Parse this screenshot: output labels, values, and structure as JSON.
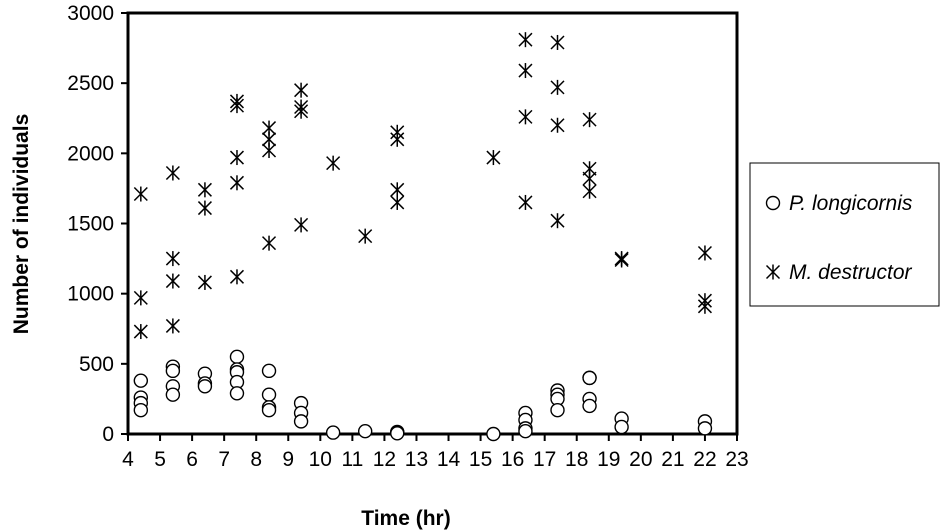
{
  "chart_data": {
    "type": "scatter",
    "title": "",
    "xlabel": "Time (hr)",
    "ylabel": "Number of individuals",
    "xlim": [
      4,
      23
    ],
    "ylim": [
      0,
      3000
    ],
    "xticks": [
      4,
      5,
      6,
      7,
      8,
      9,
      10,
      11,
      12,
      13,
      14,
      15,
      16,
      17,
      18,
      19,
      20,
      21,
      22,
      23
    ],
    "yticks": [
      0,
      500,
      1000,
      1500,
      2000,
      2500,
      3000
    ],
    "grid": false,
    "legend_position": "right",
    "series": [
      {
        "name": "P. longicornis",
        "marker": "open-circle",
        "points": [
          [
            4.4,
            380
          ],
          [
            4.4,
            260
          ],
          [
            4.4,
            220
          ],
          [
            4.4,
            170
          ],
          [
            5.4,
            480
          ],
          [
            5.4,
            450
          ],
          [
            5.4,
            340
          ],
          [
            5.4,
            280
          ],
          [
            6.4,
            430
          ],
          [
            6.4,
            360
          ],
          [
            6.4,
            340
          ],
          [
            7.4,
            550
          ],
          [
            7.4,
            460
          ],
          [
            7.4,
            440
          ],
          [
            7.4,
            370
          ],
          [
            7.4,
            290
          ],
          [
            8.4,
            450
          ],
          [
            8.4,
            280
          ],
          [
            8.4,
            190
          ],
          [
            8.4,
            170
          ],
          [
            9.4,
            220
          ],
          [
            9.4,
            150
          ],
          [
            9.4,
            90
          ],
          [
            10.4,
            10
          ],
          [
            11.4,
            20
          ],
          [
            12.4,
            15
          ],
          [
            12.4,
            10
          ],
          [
            12.4,
            5
          ],
          [
            15.4,
            0
          ],
          [
            16.4,
            150
          ],
          [
            16.4,
            100
          ],
          [
            16.4,
            40
          ],
          [
            16.4,
            20
          ],
          [
            17.4,
            310
          ],
          [
            17.4,
            280
          ],
          [
            17.4,
            250
          ],
          [
            17.4,
            170
          ],
          [
            18.4,
            400
          ],
          [
            18.4,
            400
          ],
          [
            18.4,
            250
          ],
          [
            18.4,
            200
          ],
          [
            19.4,
            110
          ],
          [
            19.4,
            50
          ],
          [
            22,
            90
          ],
          [
            22,
            40
          ]
        ]
      },
      {
        "name": "M. destructor",
        "marker": "asterisk",
        "points": [
          [
            4.4,
            1710
          ],
          [
            4.4,
            970
          ],
          [
            4.4,
            730
          ],
          [
            5.4,
            1860
          ],
          [
            5.4,
            1250
          ],
          [
            5.4,
            1090
          ],
          [
            5.4,
            770
          ],
          [
            6.4,
            1740
          ],
          [
            6.4,
            1610
          ],
          [
            6.4,
            1080
          ],
          [
            7.4,
            2370
          ],
          [
            7.4,
            2340
          ],
          [
            7.4,
            1970
          ],
          [
            7.4,
            1790
          ],
          [
            7.4,
            1120
          ],
          [
            8.4,
            2180
          ],
          [
            8.4,
            2100
          ],
          [
            8.4,
            2020
          ],
          [
            8.4,
            1360
          ],
          [
            9.4,
            2450
          ],
          [
            9.4,
            2330
          ],
          [
            9.4,
            2300
          ],
          [
            9.4,
            1490
          ],
          [
            10.4,
            1930
          ],
          [
            11.4,
            1410
          ],
          [
            12.4,
            2150
          ],
          [
            12.4,
            2100
          ],
          [
            12.4,
            1740
          ],
          [
            12.4,
            1650
          ],
          [
            15.4,
            1970
          ],
          [
            16.4,
            2810
          ],
          [
            16.4,
            2590
          ],
          [
            16.4,
            2260
          ],
          [
            16.4,
            1650
          ],
          [
            17.4,
            2790
          ],
          [
            17.4,
            2470
          ],
          [
            17.4,
            2200
          ],
          [
            17.4,
            1520
          ],
          [
            18.4,
            2240
          ],
          [
            18.4,
            1890
          ],
          [
            18.4,
            1820
          ],
          [
            18.4,
            1730
          ],
          [
            19.4,
            1250
          ],
          [
            19.4,
            1240
          ],
          [
            22,
            1290
          ],
          [
            22,
            950
          ],
          [
            22,
            910
          ]
        ]
      }
    ]
  },
  "colors": {
    "ink": "#000000",
    "background": "#ffffff"
  }
}
